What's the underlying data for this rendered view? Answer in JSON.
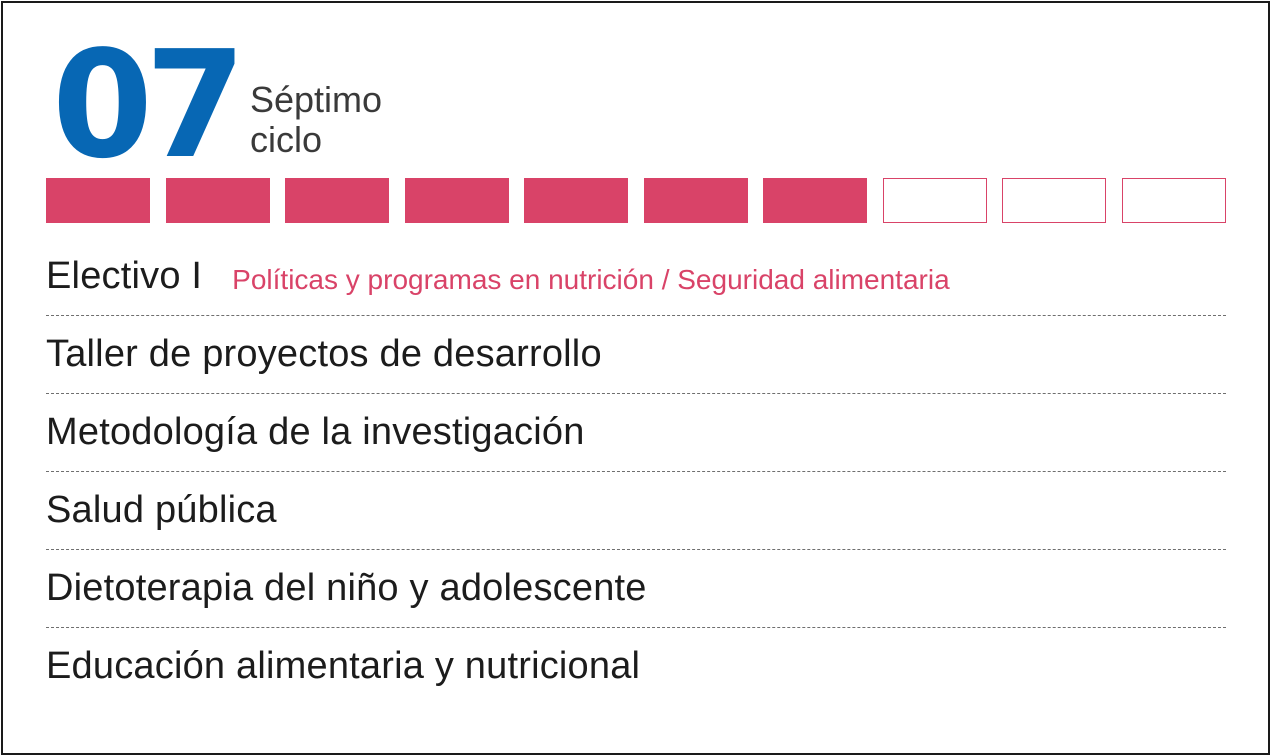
{
  "header": {
    "number": "07",
    "label_line1": "Séptimo",
    "label_line2": "ciclo"
  },
  "progress": {
    "total_segments": 10,
    "completed_segments": 7,
    "filled_color": "#d94368",
    "empty_color": "#ffffff"
  },
  "colors": {
    "number": "#0767b4",
    "accent": "#d94368",
    "text": "#1c1c1c",
    "label": "#3a3a3a"
  },
  "courses": [
    {
      "name": "Electivo I",
      "detail": "Políticas y programas en nutrición / Seguridad alimentaria"
    },
    {
      "name": "Taller de proyectos de desarrollo"
    },
    {
      "name": "Metodología de la investigación"
    },
    {
      "name": "Salud pública"
    },
    {
      "name": "Dietoterapia del niño y adolescente"
    },
    {
      "name": "Educación alimentaria y nutricional"
    }
  ]
}
